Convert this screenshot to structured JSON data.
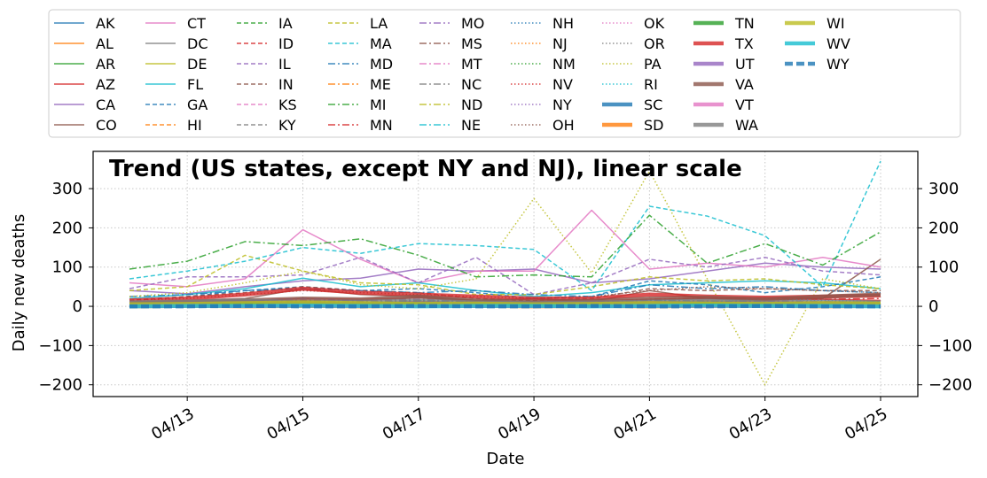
{
  "chart_data": {
    "type": "line",
    "title": "Trend (US states, except NY and NJ), linear scale",
    "xlabel": "Date",
    "ylabel": "Daily new deaths",
    "ylim": [
      -230,
      395
    ],
    "yticks": [
      -200,
      -100,
      0,
      100,
      200,
      300
    ],
    "x": [
      "04/12",
      "04/13",
      "04/14",
      "04/15",
      "04/16",
      "04/17",
      "04/18",
      "04/19",
      "04/20",
      "04/21",
      "04/22",
      "04/23",
      "04/24",
      "04/25"
    ],
    "xticks": [
      "04/13",
      "04/15",
      "04/17",
      "04/19",
      "04/21",
      "04/23",
      "04/25"
    ],
    "grid": true,
    "legend_position": "top",
    "series": [
      {
        "name": "AK",
        "color": "#1f77b4",
        "style": "solid",
        "width": "thin",
        "values": [
          0,
          0,
          0,
          0,
          0,
          0,
          0,
          0,
          0,
          0,
          0,
          0,
          0,
          0
        ]
      },
      {
        "name": "AL",
        "color": "#ff7f0e",
        "style": "solid",
        "width": "thin",
        "values": [
          5,
          8,
          10,
          12,
          8,
          12,
          10,
          8,
          10,
          12,
          14,
          12,
          10,
          12
        ]
      },
      {
        "name": "AR",
        "color": "#2ca02c",
        "style": "solid",
        "width": "thin",
        "values": [
          1,
          2,
          2,
          3,
          2,
          1,
          2,
          3,
          1,
          2,
          3,
          2,
          1,
          2
        ]
      },
      {
        "name": "AZ",
        "color": "#d62728",
        "style": "solid",
        "width": "thin",
        "values": [
          10,
          12,
          15,
          20,
          18,
          22,
          15,
          12,
          14,
          18,
          20,
          16,
          18,
          15
        ]
      },
      {
        "name": "CA",
        "color": "#9467bd",
        "style": "solid",
        "width": "thin",
        "values": [
          40,
          32,
          50,
          65,
          72,
          95,
          90,
          95,
          60,
          70,
          90,
          110,
          100,
          95
        ]
      },
      {
        "name": "CO",
        "color": "#8c564b",
        "style": "solid",
        "width": "thin",
        "values": [
          10,
          15,
          20,
          45,
          30,
          25,
          15,
          20,
          12,
          40,
          20,
          22,
          20,
          120
        ]
      },
      {
        "name": "CT",
        "color": "#e377c2",
        "style": "solid",
        "width": "thin",
        "values": [
          60,
          50,
          70,
          195,
          120,
          60,
          90,
          90,
          245,
          95,
          110,
          100,
          125,
          100
        ]
      },
      {
        "name": "DC",
        "color": "#7f7f7f",
        "style": "solid",
        "width": "thin",
        "values": [
          2,
          3,
          4,
          3,
          5,
          4,
          6,
          5,
          4,
          6,
          5,
          4,
          6,
          5
        ]
      },
      {
        "name": "DE",
        "color": "#bcbd22",
        "style": "solid",
        "width": "thin",
        "values": [
          2,
          3,
          3,
          4,
          5,
          6,
          4,
          5,
          3,
          6,
          7,
          5,
          6,
          5
        ]
      },
      {
        "name": "FL",
        "color": "#17becf",
        "style": "solid",
        "width": "thin",
        "values": [
          20,
          30,
          45,
          72,
          50,
          60,
          40,
          25,
          35,
          55,
          60,
          65,
          60,
          45
        ]
      },
      {
        "name": "GA",
        "color": "#1f77b4",
        "style": "dashed",
        "width": "thin",
        "values": [
          15,
          25,
          40,
          50,
          40,
          45,
          35,
          20,
          25,
          65,
          55,
          35,
          50,
          75
        ]
      },
      {
        "name": "HI",
        "color": "#ff7f0e",
        "style": "dashed",
        "width": "thin",
        "values": [
          0,
          0,
          1,
          0,
          1,
          0,
          0,
          1,
          0,
          1,
          0,
          0,
          1,
          0
        ]
      },
      {
        "name": "IA",
        "color": "#2ca02c",
        "style": "dashed",
        "width": "thin",
        "values": [
          2,
          3,
          4,
          5,
          4,
          6,
          5,
          4,
          5,
          6,
          5,
          7,
          6,
          5
        ]
      },
      {
        "name": "ID",
        "color": "#d62728",
        "style": "dashed",
        "width": "thin",
        "values": [
          2,
          3,
          2,
          3,
          4,
          3,
          2,
          3,
          2,
          3,
          4,
          2,
          3,
          2
        ]
      },
      {
        "name": "IL",
        "color": "#9467bd",
        "style": "dashed",
        "width": "thin",
        "values": [
          45,
          75,
          75,
          80,
          125,
          60,
          125,
          30,
          60,
          120,
          100,
          125,
          90,
          80
        ]
      },
      {
        "name": "IN",
        "color": "#8c564b",
        "style": "dashed",
        "width": "thin",
        "values": [
          15,
          25,
          35,
          50,
          40,
          35,
          20,
          15,
          20,
          45,
          40,
          45,
          40,
          40
        ]
      },
      {
        "name": "KS",
        "color": "#e377c2",
        "style": "dashed",
        "width": "thin",
        "values": [
          2,
          3,
          4,
          3,
          5,
          4,
          3,
          4,
          3,
          5,
          4,
          3,
          4,
          3
        ]
      },
      {
        "name": "KY",
        "color": "#7f7f7f",
        "style": "dashed",
        "width": "thin",
        "values": [
          4,
          6,
          8,
          10,
          8,
          6,
          5,
          6,
          4,
          8,
          10,
          8,
          6,
          7
        ]
      },
      {
        "name": "LA",
        "color": "#bcbd22",
        "style": "dashed",
        "width": "thin",
        "values": [
          40,
          50,
          130,
          90,
          60,
          55,
          30,
          30,
          50,
          75,
          65,
          70,
          55,
          45
        ]
      },
      {
        "name": "MA",
        "color": "#17becf",
        "style": "dashed",
        "width": "thin",
        "values": [
          70,
          90,
          115,
          150,
          135,
          160,
          155,
          145,
          40,
          255,
          230,
          180,
          50,
          370
        ]
      },
      {
        "name": "MD",
        "color": "#1f77b4",
        "style": "dashdot",
        "width": "thin",
        "values": [
          25,
          30,
          40,
          45,
          40,
          35,
          40,
          30,
          25,
          55,
          45,
          50,
          40,
          35
        ]
      },
      {
        "name": "ME",
        "color": "#ff7f0e",
        "style": "dashdot",
        "width": "thin",
        "values": [
          1,
          2,
          1,
          2,
          1,
          2,
          1,
          1,
          2,
          1,
          2,
          1,
          1,
          2
        ]
      },
      {
        "name": "MI",
        "color": "#2ca02c",
        "style": "dashdot",
        "width": "thin",
        "values": [
          95,
          115,
          165,
          155,
          172,
          130,
          75,
          80,
          75,
          232,
          110,
          160,
          105,
          190
        ]
      },
      {
        "name": "MN",
        "color": "#d62728",
        "style": "dashdot",
        "width": "thin",
        "values": [
          4,
          8,
          10,
          12,
          10,
          15,
          12,
          10,
          12,
          18,
          20,
          22,
          18,
          20
        ]
      },
      {
        "name": "MO",
        "color": "#9467bd",
        "style": "dashdot",
        "width": "thin",
        "values": [
          5,
          10,
          15,
          20,
          15,
          18,
          12,
          10,
          8,
          15,
          12,
          14,
          12,
          10
        ]
      },
      {
        "name": "MS",
        "color": "#8c564b",
        "style": "dashdot",
        "width": "thin",
        "values": [
          5,
          8,
          10,
          12,
          10,
          12,
          8,
          6,
          8,
          10,
          12,
          10,
          8,
          10
        ]
      },
      {
        "name": "MT",
        "color": "#e377c2",
        "style": "dashdot",
        "width": "thin",
        "values": [
          0,
          1,
          0,
          1,
          0,
          1,
          0,
          0,
          1,
          0,
          1,
          0,
          0,
          1
        ]
      },
      {
        "name": "NC",
        "color": "#7f7f7f",
        "style": "dashdot",
        "width": "thin",
        "values": [
          8,
          10,
          12,
          15,
          12,
          14,
          10,
          8,
          10,
          15,
          14,
          12,
          10,
          12
        ]
      },
      {
        "name": "ND",
        "color": "#bcbd22",
        "style": "dashdot",
        "width": "thin",
        "values": [
          0,
          1,
          1,
          0,
          1,
          1,
          0,
          1,
          0,
          1,
          1,
          0,
          1,
          0
        ]
      },
      {
        "name": "NE",
        "color": "#17becf",
        "style": "dashdot",
        "width": "thin",
        "values": [
          1,
          2,
          2,
          3,
          2,
          2,
          1,
          2,
          1,
          3,
          2,
          2,
          3,
          2
        ]
      },
      {
        "name": "NH",
        "color": "#1f77b4",
        "style": "dotted",
        "width": "thin",
        "values": [
          1,
          2,
          2,
          3,
          2,
          2,
          1,
          2,
          2,
          3,
          2,
          3,
          2,
          3
        ]
      },
      {
        "name": "NJ",
        "color": "#ff7f0e",
        "style": "dotted",
        "width": "thin",
        "values": [
          0,
          0,
          0,
          0,
          0,
          0,
          0,
          0,
          0,
          0,
          0,
          0,
          0,
          0
        ]
      },
      {
        "name": "NM",
        "color": "#2ca02c",
        "style": "dotted",
        "width": "thin",
        "values": [
          2,
          3,
          4,
          3,
          4,
          5,
          3,
          4,
          3,
          5,
          4,
          5,
          4,
          3
        ]
      },
      {
        "name": "NV",
        "color": "#d62728",
        "style": "dotted",
        "width": "thin",
        "values": [
          5,
          8,
          10,
          8,
          7,
          6,
          8,
          5,
          6,
          8,
          7,
          6,
          8,
          7
        ]
      },
      {
        "name": "NY",
        "color": "#9467bd",
        "style": "dotted",
        "width": "thin",
        "values": [
          0,
          0,
          0,
          0,
          0,
          0,
          0,
          0,
          0,
          0,
          0,
          0,
          0,
          0
        ]
      },
      {
        "name": "OH",
        "color": "#8c564b",
        "style": "dotted",
        "width": "thin",
        "values": [
          15,
          20,
          30,
          40,
          35,
          30,
          25,
          20,
          25,
          40,
          50,
          45,
          40,
          35
        ]
      },
      {
        "name": "OK",
        "color": "#e377c2",
        "style": "dotted",
        "width": "thin",
        "values": [
          5,
          8,
          10,
          8,
          6,
          7,
          5,
          4,
          6,
          8,
          7,
          6,
          5,
          7
        ]
      },
      {
        "name": "OR",
        "color": "#7f7f7f",
        "style": "dotted",
        "width": "thin",
        "values": [
          2,
          3,
          2,
          3,
          2,
          3,
          2,
          2,
          3,
          2,
          3,
          2,
          2,
          3
        ]
      },
      {
        "name": "PA",
        "color": "#bcbd22",
        "style": "dotted",
        "width": "thin",
        "values": [
          25,
          35,
          60,
          90,
          55,
          45,
          70,
          275,
          85,
          345,
          70,
          -200,
          70,
          45
        ]
      },
      {
        "name": "RI",
        "color": "#17becf",
        "style": "dotted",
        "width": "thin",
        "values": [
          5,
          8,
          10,
          12,
          10,
          15,
          12,
          10,
          8,
          15,
          12,
          18,
          15,
          12
        ]
      },
      {
        "name": "SC",
        "color": "#1f77b4",
        "style": "solid",
        "width": "thick",
        "values": [
          3,
          4,
          5,
          6,
          5,
          6,
          4,
          5,
          4,
          6,
          5,
          6,
          5,
          4
        ]
      },
      {
        "name": "SD",
        "color": "#ff7f0e",
        "style": "solid",
        "width": "thick",
        "values": [
          0,
          1,
          0,
          1,
          0,
          1,
          1,
          0,
          1,
          0,
          1,
          1,
          0,
          1
        ]
      },
      {
        "name": "TN",
        "color": "#2ca02c",
        "style": "solid",
        "width": "thick",
        "values": [
          3,
          4,
          5,
          6,
          5,
          4,
          5,
          3,
          4,
          5,
          6,
          5,
          4,
          5
        ]
      },
      {
        "name": "TX",
        "color": "#d62728",
        "style": "solid",
        "width": "thick",
        "values": [
          15,
          20,
          30,
          45,
          35,
          30,
          25,
          20,
          20,
          30,
          25,
          22,
          25,
          28
        ]
      },
      {
        "name": "UT",
        "color": "#9467bd",
        "style": "solid",
        "width": "thick",
        "values": [
          1,
          2,
          1,
          2,
          1,
          2,
          1,
          1,
          2,
          1,
          2,
          1,
          2,
          1
        ]
      },
      {
        "name": "VA",
        "color": "#8c564b",
        "style": "solid",
        "width": "thick",
        "values": [
          8,
          10,
          15,
          20,
          18,
          25,
          15,
          12,
          14,
          20,
          22,
          18,
          25,
          30
        ]
      },
      {
        "name": "VT",
        "color": "#e377c2",
        "style": "solid",
        "width": "thick",
        "values": [
          1,
          2,
          1,
          2,
          1,
          1,
          2,
          1,
          1,
          2,
          1,
          2,
          1,
          1
        ]
      },
      {
        "name": "WA",
        "color": "#7f7f7f",
        "style": "solid",
        "width": "thick",
        "values": [
          10,
          12,
          15,
          10,
          12,
          14,
          10,
          8,
          10,
          12,
          14,
          10,
          12,
          10
        ]
      },
      {
        "name": "WI",
        "color": "#bcbd22",
        "style": "solid",
        "width": "thick",
        "values": [
          5,
          6,
          8,
          10,
          8,
          6,
          7,
          5,
          6,
          8,
          7,
          6,
          8,
          7
        ]
      },
      {
        "name": "WV",
        "color": "#17becf",
        "style": "solid",
        "width": "thick",
        "values": [
          0,
          1,
          1,
          2,
          1,
          0,
          1,
          1,
          0,
          1,
          2,
          1,
          1,
          0
        ]
      },
      {
        "name": "WY",
        "color": "#1f77b4",
        "style": "dashed",
        "width": "thick",
        "values": [
          0,
          0,
          1,
          0,
          0,
          1,
          0,
          0,
          1,
          0,
          0,
          1,
          0,
          0
        ]
      }
    ]
  }
}
